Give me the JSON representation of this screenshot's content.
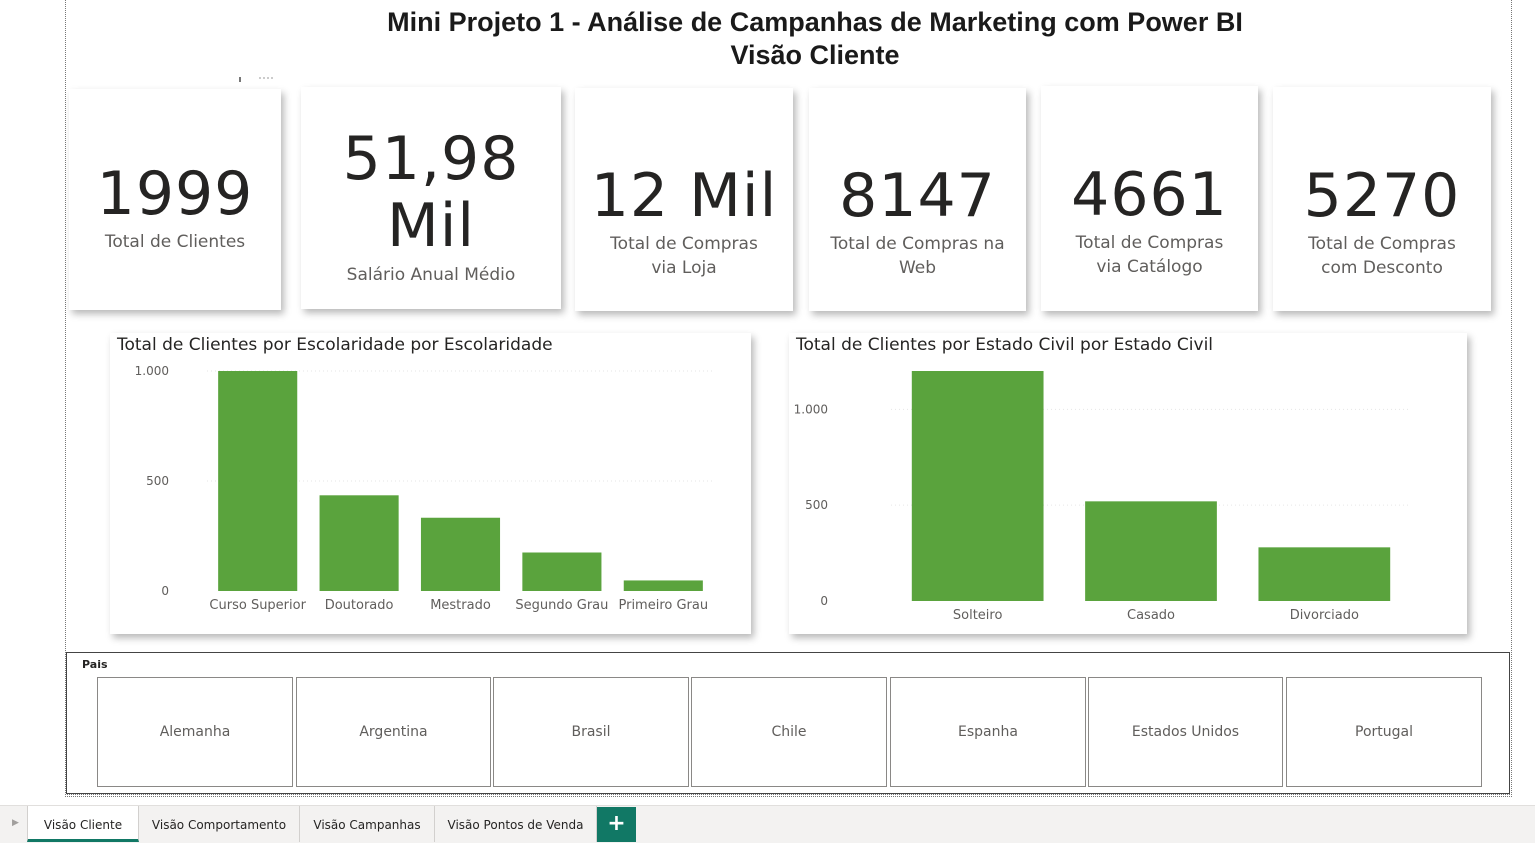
{
  "header": {
    "title_line1": "Mini Projeto 1 - Análise de Campanhas de Marketing com Power BI",
    "title_line2": "Visão Cliente"
  },
  "cards": [
    {
      "value": "1999",
      "label": "Total de Clientes"
    },
    {
      "value_line1": "51,98",
      "value_line2": "Mil",
      "label": "Salário Anual Médio"
    },
    {
      "value": "12 Mil",
      "label": "Total de Compras via Loja"
    },
    {
      "value": "8147",
      "label": "Total de Compras na Web"
    },
    {
      "value": "4661",
      "label": "Total de Compras via Catálogo"
    },
    {
      "value": "5270",
      "label": "Total de Compras com Desconto"
    }
  ],
  "charts": {
    "color": "#5aa33d",
    "escolaridade": {
      "title": "Total de Clientes por Escolaridade por Escolaridade",
      "chart_data": {
        "type": "bar",
        "title": "Total de Clientes por Escolaridade por Escolaridade",
        "categories": [
          "Curso Superior",
          "Doutorado",
          "Mestrado",
          "Segundo Grau",
          "Primeiro Grau"
        ],
        "values": [
          1000,
          435,
          333,
          175,
          48
        ],
        "yticks": [
          0,
          500,
          1000
        ],
        "ytick_labels": [
          "0",
          "500",
          "1.000"
        ],
        "ylim": [
          0,
          1000
        ],
        "grid": true
      }
    },
    "estado_civil": {
      "title": "Total de Clientes por Estado Civil por Estado Civil",
      "chart_data": {
        "type": "bar",
        "title": "Total de Clientes por Estado Civil por Estado Civil",
        "categories": [
          "Solteiro",
          "Casado",
          "Divorciado"
        ],
        "values": [
          1200,
          520,
          280
        ],
        "yticks": [
          0,
          500,
          1000
        ],
        "ytick_labels": [
          "0",
          "500",
          "1.000"
        ],
        "ylim": [
          0,
          1200
        ],
        "grid": true
      }
    }
  },
  "slicer": {
    "title": "Pais",
    "items": [
      "Alemanha",
      "Argentina",
      "Brasil",
      "Chile",
      "Espanha",
      "Estados Unidos",
      "Portugal"
    ]
  },
  "tabs": {
    "items": [
      "Visão Cliente",
      "Visão Comportamento",
      "Visão Campanhas",
      "Visão Pontos de Venda"
    ],
    "active": "Visão Cliente",
    "add_label": "+"
  },
  "icons": {
    "tab_scroll": "caret-right-icon",
    "focus_mode": "focus-mode-icon"
  }
}
